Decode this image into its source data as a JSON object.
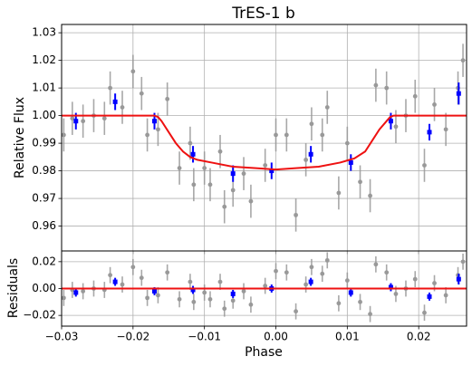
{
  "chart_data": [
    {
      "type": "scatter",
      "title": "TrES-1 b",
      "ylabel": "Relative Flux",
      "xlim": [
        -0.03,
        0.0267
      ],
      "ylim": [
        0.951,
        1.033
      ],
      "yticks": [
        0.96,
        0.97,
        0.98,
        0.99,
        {
          "value": 1.0,
          "label": "1.00"
        },
        1.01,
        1.02,
        1.03
      ],
      "grid": true,
      "series": [
        {
          "type": "scatter",
          "marker": "circle",
          "color": "#999999",
          "x": [
            -0.0297,
            -0.0285,
            -0.027,
            -0.0255,
            -0.024,
            -0.0232,
            -0.0215,
            -0.02,
            -0.0188,
            -0.018,
            -0.0165,
            -0.0152,
            -0.0135,
            -0.012,
            -0.0115,
            -0.01,
            -0.0092,
            -0.0078,
            -0.0072,
            -0.006,
            -0.0045,
            -0.0035,
            -0.0015,
            0.0,
            0.0015,
            0.0028,
            0.0042,
            0.005,
            0.0065,
            0.0072,
            0.0088,
            0.01,
            0.0118,
            0.0132,
            0.014,
            0.0155,
            0.0168,
            0.0182,
            0.0195,
            0.0208,
            0.0222,
            0.0238,
            0.0255,
            0.0262
          ],
          "values": [
            0.993,
            0.999,
            0.998,
            1.0,
            0.999,
            1.01,
            1.003,
            1.016,
            1.008,
            0.993,
            0.995,
            1.006,
            0.981,
            0.99,
            0.975,
            0.981,
            0.975,
            0.987,
            0.967,
            0.973,
            0.979,
            0.969,
            0.982,
            0.993,
            0.993,
            0.964,
            0.984,
            0.997,
            0.993,
            1.003,
            0.972,
            0.99,
            0.976,
            0.971,
            1.011,
            1.01,
            0.996,
            1.0,
            1.007,
            0.982,
            1.004,
            0.995,
            1.01,
            1.02
          ],
          "errors": [
            0.006,
            0.006,
            0.006,
            0.006,
            0.006,
            0.006,
            0.006,
            0.006,
            0.006,
            0.006,
            0.006,
            0.006,
            0.006,
            0.006,
            0.006,
            0.006,
            0.006,
            0.006,
            0.006,
            0.006,
            0.006,
            0.006,
            0.006,
            0.006,
            0.006,
            0.006,
            0.006,
            0.006,
            0.006,
            0.006,
            0.006,
            0.006,
            0.006,
            0.006,
            0.006,
            0.006,
            0.006,
            0.006,
            0.006,
            0.006,
            0.006,
            0.006,
            0.006,
            0.006
          ]
        },
        {
          "type": "scatter",
          "marker": "square",
          "color": "#0000ff",
          "x": [
            -0.028,
            -0.0225,
            -0.017,
            -0.0116,
            -0.006,
            -0.0006,
            0.0049,
            0.0105,
            0.0161,
            0.0215,
            0.0256
          ],
          "values": [
            0.998,
            1.005,
            0.998,
            0.986,
            0.979,
            0.98,
            0.986,
            0.983,
            0.998,
            0.994,
            1.008
          ],
          "errors": [
            0.003,
            0.003,
            0.003,
            0.003,
            0.003,
            0.003,
            0.003,
            0.003,
            0.003,
            0.003,
            0.004
          ]
        },
        {
          "type": "line",
          "color": "#ee1111",
          "x": [
            -0.03,
            -0.017,
            -0.0165,
            -0.016,
            -0.015,
            -0.014,
            -0.013,
            -0.012,
            -0.011,
            -0.009,
            -0.006,
            -0.003,
            0.0,
            0.003,
            0.006,
            0.009,
            0.011,
            0.0125,
            0.0135,
            0.0145,
            0.0155,
            0.016,
            0.0165,
            0.0267
          ],
          "values": [
            1.0,
            1.0,
            0.9995,
            0.998,
            0.994,
            0.99,
            0.987,
            0.985,
            0.984,
            0.983,
            0.9815,
            0.981,
            0.9805,
            0.981,
            0.9815,
            0.983,
            0.9845,
            0.987,
            0.991,
            0.995,
            0.998,
            0.9995,
            1.0,
            1.0
          ]
        }
      ]
    },
    {
      "type": "scatter",
      "ylabel": "Residuals",
      "xlabel": "Phase",
      "xlim": [
        -0.03,
        0.0267
      ],
      "ylim": [
        -0.028,
        0.028
      ],
      "xticks": [
        {
          "value": -0.03,
          "label": "−0.03"
        },
        {
          "value": -0.02,
          "label": "−0.02"
        },
        {
          "value": -0.01,
          "label": "−0.01"
        },
        {
          "value": 0.0,
          "label": "0.00"
        },
        0.01,
        0.02
      ],
      "yticks": [
        {
          "value": -0.02,
          "label": "−0.02"
        },
        {
          "value": 0.0,
          "label": "0.00"
        },
        0.02
      ],
      "grid": true,
      "series": [
        {
          "type": "scatter",
          "marker": "circle",
          "color": "#999999",
          "x": [
            -0.0297,
            -0.0285,
            -0.027,
            -0.0255,
            -0.024,
            -0.0232,
            -0.0215,
            -0.02,
            -0.0188,
            -0.018,
            -0.0165,
            -0.0152,
            -0.0135,
            -0.012,
            -0.0115,
            -0.01,
            -0.0092,
            -0.0078,
            -0.0072,
            -0.006,
            -0.0045,
            -0.0035,
            -0.0015,
            0.0,
            0.0015,
            0.0028,
            0.0042,
            0.005,
            0.0065,
            0.0072,
            0.0088,
            0.01,
            0.0118,
            0.0132,
            0.014,
            0.0155,
            0.0168,
            0.0182,
            0.0195,
            0.0208,
            0.0222,
            0.0238,
            0.0255,
            0.0262
          ],
          "values": [
            -0.007,
            -0.001,
            -0.002,
            0.0,
            -0.001,
            0.01,
            0.003,
            0.016,
            0.008,
            -0.007,
            -0.005,
            0.012,
            -0.008,
            0.005,
            -0.01,
            -0.003,
            -0.008,
            0.005,
            -0.015,
            -0.009,
            -0.002,
            -0.012,
            0.002,
            0.013,
            0.012,
            -0.017,
            0.003,
            0.016,
            0.011,
            0.021,
            -0.011,
            0.006,
            -0.01,
            -0.019,
            0.018,
            0.012,
            -0.004,
            0.0,
            0.007,
            -0.018,
            0.004,
            -0.005,
            0.01,
            0.02
          ],
          "errors": [
            0.006,
            0.006,
            0.006,
            0.006,
            0.006,
            0.006,
            0.006,
            0.006,
            0.006,
            0.006,
            0.006,
            0.006,
            0.006,
            0.006,
            0.006,
            0.006,
            0.006,
            0.006,
            0.006,
            0.006,
            0.006,
            0.006,
            0.006,
            0.006,
            0.006,
            0.006,
            0.006,
            0.006,
            0.006,
            0.006,
            0.006,
            0.006,
            0.006,
            0.006,
            0.006,
            0.006,
            0.006,
            0.006,
            0.006,
            0.006,
            0.006,
            0.006,
            0.006,
            0.006
          ]
        },
        {
          "type": "scatter",
          "marker": "square",
          "color": "#0000ff",
          "x": [
            -0.028,
            -0.0225,
            -0.017,
            -0.0116,
            -0.006,
            -0.0006,
            0.0049,
            0.0105,
            0.0161,
            0.0215,
            0.0256
          ],
          "values": [
            -0.003,
            0.005,
            -0.002,
            -0.001,
            -0.004,
            0.0,
            0.005,
            -0.003,
            0.001,
            -0.006,
            0.007
          ],
          "errors": [
            0.003,
            0.003,
            0.003,
            0.003,
            0.003,
            0.003,
            0.003,
            0.003,
            0.003,
            0.003,
            0.004
          ]
        },
        {
          "type": "line",
          "color": "#ee1111",
          "x": [
            -0.03,
            0.0267
          ],
          "values": [
            0.0,
            0.0
          ]
        }
      ]
    }
  ]
}
